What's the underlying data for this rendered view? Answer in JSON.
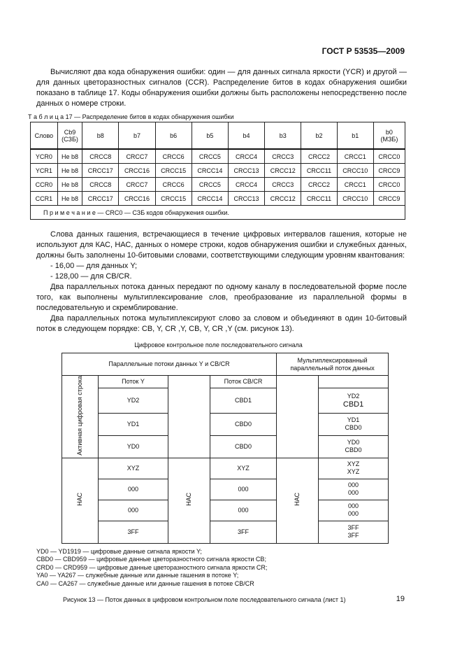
{
  "header": "ГОСТ Р 53535—2009",
  "para1": "Вычисляют два кода обнаружения ошибки: один — для данных сигнала яркости (YCR) и другой — для данных цветоразностных сигналов (CCR). Распределение битов в кодах обнаружения ошибки показано в таблице 17. Коды обнаружения ошибки должны быть расположены непосредственно после данных о номере строки.",
  "table17": {
    "caption": "Т а б л и ц а   17 — Распределение битов в кодах обнаружения ошибки",
    "headers": [
      [
        "Слово"
      ],
      [
        "Cb9",
        "(СЗБ)"
      ],
      [
        "b8"
      ],
      [
        "b7"
      ],
      [
        "b6"
      ],
      [
        "b5"
      ],
      [
        "b4"
      ],
      [
        "b3"
      ],
      [
        "b2"
      ],
      [
        "b1"
      ],
      [
        "b0",
        "(МЗБ)"
      ]
    ],
    "rows": [
      [
        "YCR0",
        "Не b8",
        "CRCC8",
        "CRCC7",
        "CRCC6",
        "CRCC5",
        "CRCC4",
        "CRCC3",
        "CRCC2",
        "CRCC1",
        "CRCC0"
      ],
      [
        "YCR1",
        "Не b8",
        "CRCC17",
        "CRCC16",
        "CRCC15",
        "CRCC14",
        "CRCC13",
        "CRCC12",
        "CRCC11",
        "CRCC10",
        "CRCC9"
      ],
      [
        "CCR0",
        "Не b8",
        "CRCC8",
        "CRCC7",
        "CRCC6",
        "CRCC5",
        "CRCC4",
        "CRCC3",
        "CRCC2",
        "CRCC1",
        "CRCC0"
      ],
      [
        "CCR1",
        "Не b8",
        "CRCC17",
        "CRCC16",
        "CRCC15",
        "CRCC14",
        "CRCC13",
        "CRCC12",
        "CRCC11",
        "CRCC10",
        "CRCC9"
      ]
    ],
    "note": "П р и м е ч а н и е — CRC0 — СЗБ кодов обнаружения ошибки."
  },
  "para2": "Слова данных гашения, встречающиеся в течение цифровых интервалов гашения, которые не используют для КАС, НАС, данных о номере строки, кодов обнаружения ошибки и служебных данных, должны быть заполнены 10-битовыми словами, соответствующими следующим уровням квантования:",
  "list": [
    "- 16,00 — для данных Y;",
    "- 128,00 — для CB/CR."
  ],
  "para3": "Два параллельных потока данных передают по одному каналу в последовательной форме после того, как выполнены мультиплексирование слов, преобразование из параллельной формы в последовательную и скремблирование.",
  "para4": "Два параллельных потока мультиплексируют слово за словом и объединяют в один 10-битовый поток в следующем порядке: CB, Y, CR ,Y, CB, Y, CR ,Y (см. рисунок 13).",
  "figure": {
    "title": "Цифровое контрольное поле последовательного сигнала",
    "parallel_header": "Параллельные потоки данных Y и CB/CR",
    "mux_header": "Мультиплексированный параллельный поток данных",
    "y_stream": "Поток Y",
    "c_stream": "Поток CB/CR",
    "active_label": "Активная цифровая строка",
    "hac_label": "НАС",
    "rows": [
      {
        "y": "YD2",
        "c": "CBD1",
        "m1": "YD2",
        "m2": "CBD1"
      },
      {
        "y": "YD1",
        "c": "CBD0",
        "m1": "YD1",
        "m2": "CBD0"
      },
      {
        "y": "YD0",
        "c": "CBD0",
        "m1": "YD0",
        "m2": "CBD0"
      },
      {
        "y": "XYZ",
        "c": "XYZ",
        "m1": "XYZ",
        "m2": "XYZ"
      },
      {
        "y": "000",
        "c": "000",
        "m1": "000",
        "m2": "000"
      },
      {
        "y": "000",
        "c": "000",
        "m1": "000",
        "m2": "000"
      },
      {
        "y": "3FF",
        "c": "3FF",
        "m1": "3FF",
        "m2": "3FF"
      }
    ]
  },
  "legend": [
    "YD0 — YD1919 — цифровые данные сигнала яркости Y;",
    "CBD0 — CBD959 — цифровые данные цветоразностного сигнала яркости CB;",
    "CRD0 — CRD959 — цифровые данные цветоразностного сигнала яркости CR;",
    "YA0 — YA267 — служебные данные или данные гашения в потоке Y;",
    "CA0 — CA267 — служебные данные или данные гашения в потоке CB/CR"
  ],
  "figure_caption": "Рисунок 13 — Поток данных в цифровом контрольном поле последовательного сигнала (лист 1)",
  "page_number": "19"
}
